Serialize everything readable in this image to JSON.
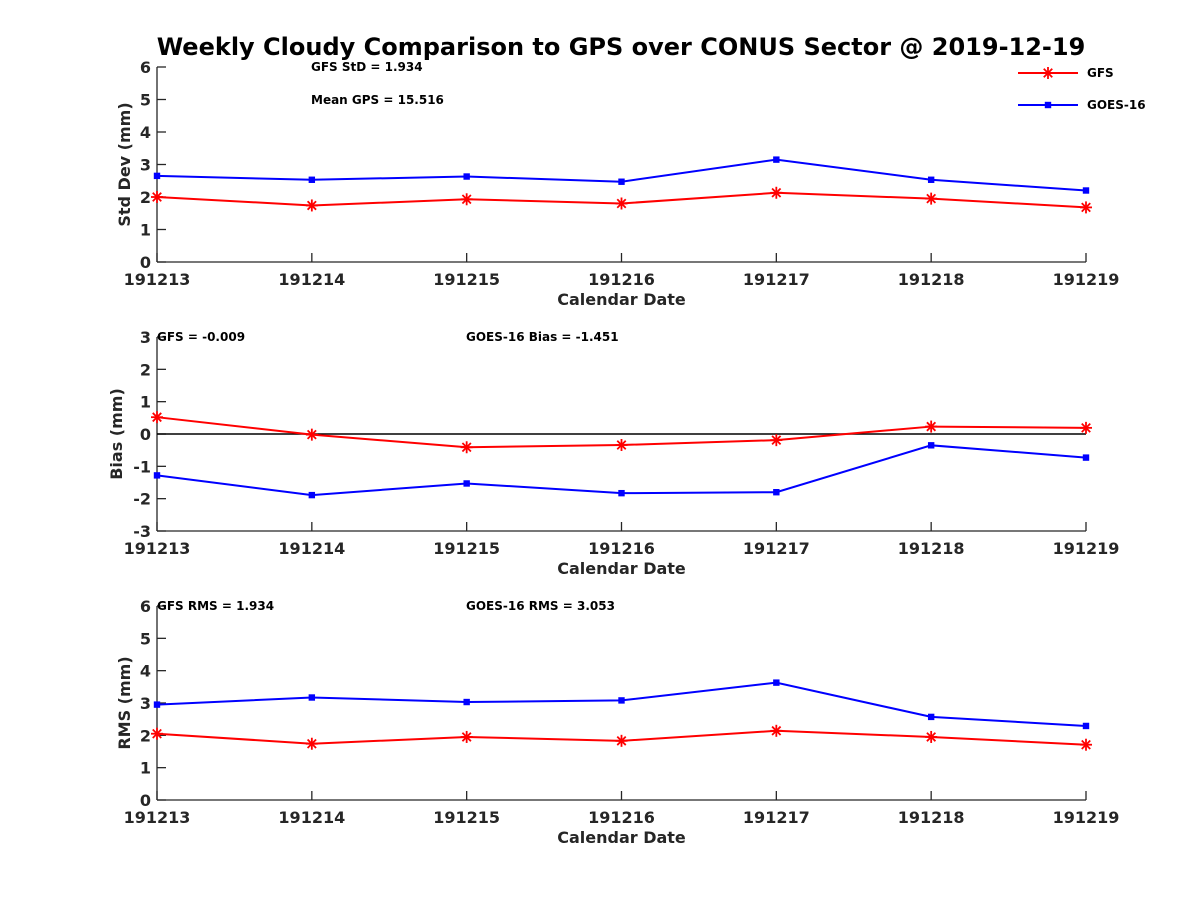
{
  "figure": {
    "title": "Weekly Cloudy Comparison to GPS over CONUS Sector @ 2019-12-19"
  },
  "legend": {
    "placement": "top-right",
    "entries": [
      {
        "name": "GFS",
        "color": "#ff0000",
        "marker": "asterisk"
      },
      {
        "name": "GOES-16",
        "color": "#0000ff",
        "marker": "square"
      }
    ]
  },
  "chart_data": [
    {
      "type": "line",
      "id": "std",
      "title": "",
      "xlabel": "Calendar Date",
      "ylabel": "Std Dev (mm)",
      "categories": [
        "191213",
        "191214",
        "191215",
        "191216",
        "191217",
        "191218",
        "191219"
      ],
      "ylim": [
        0,
        6
      ],
      "yticks": [
        "0",
        "1",
        "2",
        "3",
        "4",
        "5",
        "6"
      ],
      "zero_line": false,
      "annotations": [
        "GFS StD = 1.934",
        "Mean GPS = 15.516"
      ],
      "series": [
        {
          "name": "GFS",
          "color": "#ff0000",
          "marker": "asterisk",
          "values": [
            2.0,
            1.74,
            1.93,
            1.8,
            2.13,
            1.95,
            1.68
          ]
        },
        {
          "name": "GOES-16",
          "color": "#0000ff",
          "marker": "square",
          "values": [
            2.65,
            2.53,
            2.63,
            2.47,
            3.15,
            2.53,
            2.2
          ]
        }
      ]
    },
    {
      "type": "line",
      "id": "bias",
      "title": "",
      "xlabel": "Calendar Date",
      "ylabel": "Bias (mm)",
      "categories": [
        "191213",
        "191214",
        "191215",
        "191216",
        "191217",
        "191218",
        "191219"
      ],
      "ylim": [
        -3,
        3
      ],
      "yticks": [
        "-3",
        "-2",
        "-1",
        "0",
        "1",
        "2",
        "3"
      ],
      "zero_line": true,
      "annotations": [
        "GFS = -0.009",
        "GOES-16 Bias  = -1.451"
      ],
      "series": [
        {
          "name": "GFS",
          "color": "#ff0000",
          "marker": "asterisk",
          "values": [
            0.52,
            -0.02,
            -0.41,
            -0.34,
            -0.19,
            0.23,
            0.19
          ]
        },
        {
          "name": "GOES-16",
          "color": "#0000ff",
          "marker": "square",
          "values": [
            -1.28,
            -1.89,
            -1.53,
            -1.83,
            -1.8,
            -0.35,
            -0.73
          ]
        }
      ]
    },
    {
      "type": "line",
      "id": "rms",
      "title": "",
      "xlabel": "Calendar Date",
      "ylabel": "RMS (mm)",
      "categories": [
        "191213",
        "191214",
        "191215",
        "191216",
        "191217",
        "191218",
        "191219"
      ],
      "ylim": [
        0,
        6
      ],
      "yticks": [
        "0",
        "1",
        "2",
        "3",
        "4",
        "5",
        "6"
      ],
      "zero_line": false,
      "annotations": [
        "GFS RMS = 1.934",
        "GOES-16 RMS = 3.053"
      ],
      "series": [
        {
          "name": "GFS",
          "color": "#ff0000",
          "marker": "asterisk",
          "values": [
            2.05,
            1.74,
            1.95,
            1.83,
            2.14,
            1.95,
            1.71
          ]
        },
        {
          "name": "GOES-16",
          "color": "#0000ff",
          "marker": "square",
          "values": [
            2.95,
            3.17,
            3.03,
            3.08,
            3.63,
            2.57,
            2.29
          ]
        }
      ]
    }
  ]
}
